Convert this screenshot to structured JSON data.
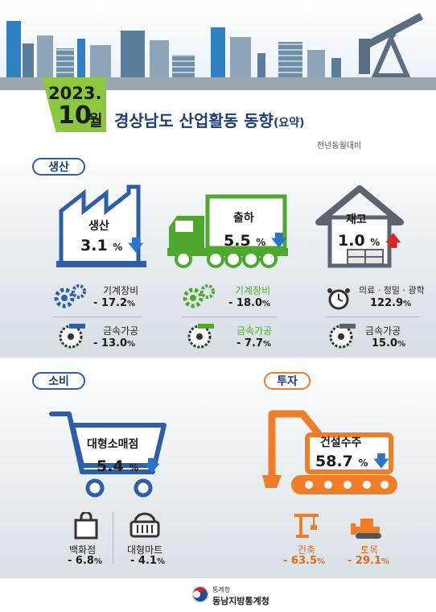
{
  "header": {
    "year": "2023.",
    "month_num": "10",
    "month_unit": "월",
    "title": "경상남도 산업활동 동향",
    "title_suffix": "(요약)",
    "subnote": "전년동월대비"
  },
  "colors": {
    "navy": "#2d5fa6",
    "green": "#4fa82e",
    "orange": "#f07d27",
    "down_arrow": "#2b74c8",
    "up_arrow": "#d9262a"
  },
  "production": {
    "section_label": "생산",
    "main": {
      "label": "생산",
      "value": "3.1",
      "unit": "%",
      "trend": "down"
    },
    "items": [
      {
        "icon": "gears-icon",
        "label": "기계장비",
        "value": "- 17.2",
        "unit": "%"
      },
      {
        "icon": "saw-blade-icon",
        "label": "금속가공",
        "value": "- 13.0",
        "unit": "%"
      }
    ]
  },
  "shipment": {
    "main": {
      "label": "출하",
      "value": "5.5",
      "unit": "%",
      "trend": "down"
    },
    "items": [
      {
        "icon": "gears-icon",
        "label": "기계장비",
        "value": "- 18.0",
        "unit": "%"
      },
      {
        "icon": "saw-blade-icon",
        "label": "금속가공",
        "value": "- 7.7",
        "unit": "%"
      }
    ]
  },
  "inventory": {
    "main": {
      "label": "재고",
      "value": "1.0",
      "unit": "%",
      "trend": "up"
    },
    "items": [
      {
        "icon": "clock-icon",
        "label": "의료 · 정밀 · 광학",
        "value": "122.9",
        "unit": "%"
      },
      {
        "icon": "saw-blade-icon",
        "label": "금속가공",
        "value": "15.0",
        "unit": "%"
      }
    ]
  },
  "consumption": {
    "section_label": "소비",
    "main": {
      "label": "대형소매점",
      "value": "5.4",
      "unit": "%",
      "trend": "down"
    },
    "items": [
      {
        "icon": "shopping-bag-icon",
        "label": "백화점",
        "value": "- 6.8",
        "unit": "%"
      },
      {
        "icon": "basket-icon",
        "label": "대형마트",
        "value": "- 4.1",
        "unit": "%"
      }
    ]
  },
  "investment": {
    "section_label": "투자",
    "main": {
      "label": "건설수주",
      "value": "58.7",
      "unit": "%",
      "trend": "down"
    },
    "items": [
      {
        "icon": "crane-icon",
        "label": "건축",
        "value": "- 63.5",
        "unit": "%"
      },
      {
        "icon": "bulldozer-icon",
        "label": "토목",
        "value": "- 29.1",
        "unit": "%"
      }
    ]
  },
  "footer": {
    "org_small": "통계청",
    "org_name": "동남지방통계청"
  }
}
